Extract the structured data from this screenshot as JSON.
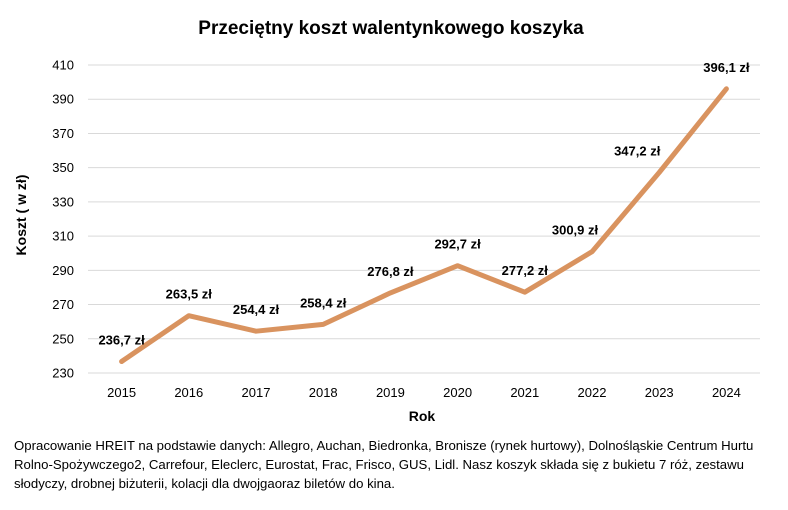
{
  "chart_data": {
    "type": "line",
    "title": "Przeciętny koszt walentynkowego koszyka",
    "xlabel": "Rok",
    "ylabel": "Koszt ( w zł)",
    "categories": [
      "2015",
      "2016",
      "2017",
      "2018",
      "2019",
      "2020",
      "2021",
      "2022",
      "2023",
      "2024"
    ],
    "series": [
      {
        "values": [
          236.7,
          263.5,
          254.4,
          258.4,
          276.8,
          292.7,
          277.2,
          300.9,
          347.2,
          396.1
        ],
        "labels": [
          "236,7 zł",
          "263,5 zł",
          "254,4 zł",
          "258,4 zł",
          "276,8 zł",
          "292,7 zł",
          "277,2 zł",
          "300,9 zł",
          "347,2 zł",
          "396,1 zł"
        ],
        "color": "#D9935F"
      }
    ],
    "ylim": [
      230,
      410
    ],
    "yticks": [
      "230",
      "250",
      "270",
      "290",
      "310",
      "330",
      "350",
      "370",
      "390",
      "410"
    ],
    "grid": true,
    "legend": "none"
  },
  "source_note": "Opracowanie HREIT na podstawie danych: Allegro, Auchan, Biedronka, Bronisze (rynek hurtowy), Dolnośląskie Centrum Hurtu Rolno-Spożywczego2, Carrefour, Eleclerc, Eurostat, Frac, Frisco, GUS, Lidl. Nasz koszyk składa się z bukietu 7 róż, zestawu słodyczy, drobnej biżuterii, kolacji dla dwojgaoraz biletów do kina."
}
